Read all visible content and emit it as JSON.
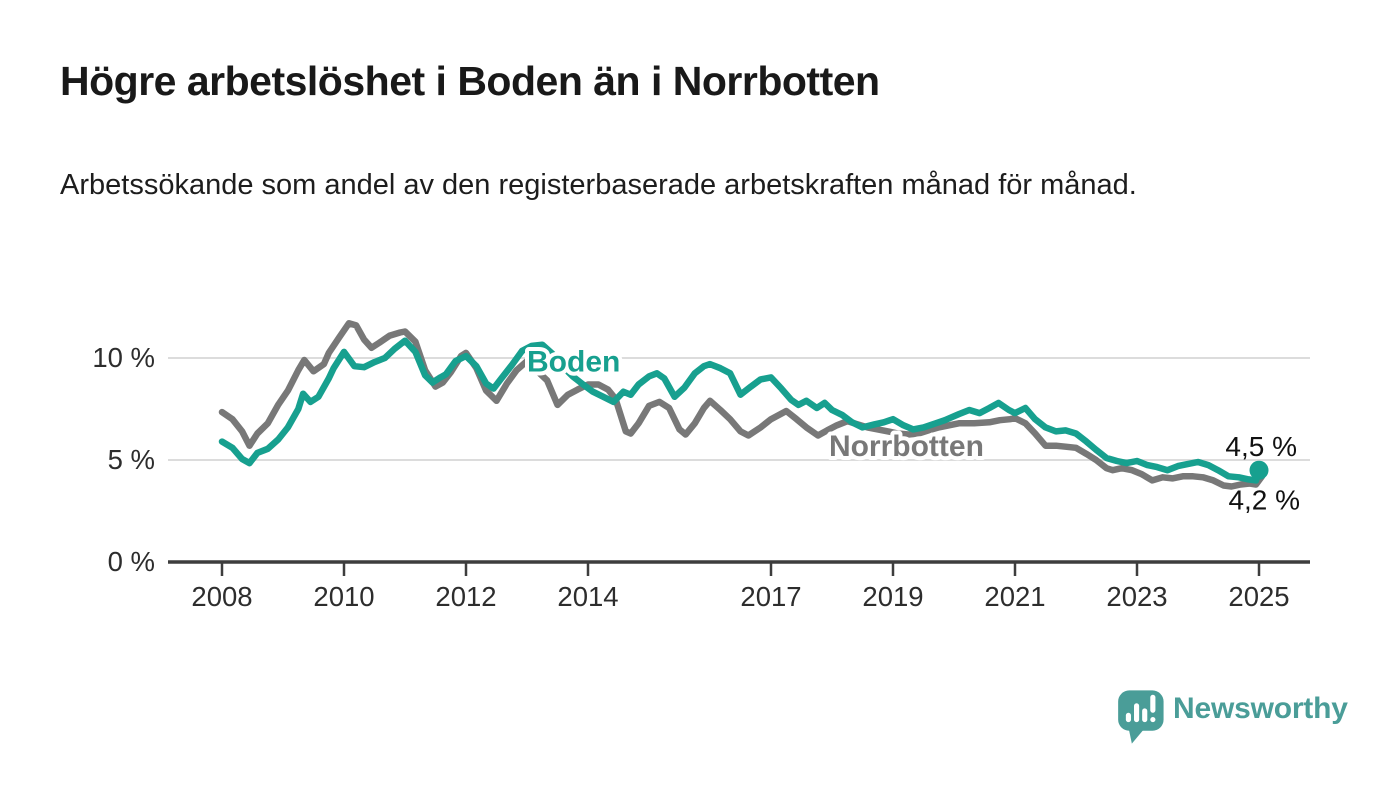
{
  "header": {
    "title": "Högre arbetslöshet i Boden än i Norrbotten",
    "subtitle": "Arbetssökande som andel av den registerbaserade arbetskraften månad för månad."
  },
  "chart_data": {
    "type": "line",
    "y_unit": "%",
    "grid": "horizontal",
    "legend_position": "inline-labels",
    "x_ticks": [
      2008,
      2010,
      2012,
      2014,
      2017,
      2019,
      2021,
      2023,
      2025
    ],
    "y_ticks": [
      {
        "value": 0,
        "label": "0 %"
      },
      {
        "value": 5,
        "label": "5 %"
      },
      {
        "value": 10,
        "label": "10 %"
      }
    ],
    "xlim": [
      2008,
      2025.4
    ],
    "ylim": [
      0,
      12.5
    ],
    "axis_color": "#3d3d3d",
    "grid_color": "#dcdcdc",
    "tick_label_color": "#2d2d2d",
    "annotation_color": "#111111",
    "series": [
      {
        "name": "Norrbotten",
        "color": "#787878",
        "end_label": "4,2 %",
        "end_label_side": "below",
        "end_dot": false,
        "label_anchor": {
          "t": 2017.95,
          "v": 5.2
        },
        "points": [
          [
            2008.0,
            7.35
          ],
          [
            2008.17,
            7.0
          ],
          [
            2008.33,
            6.4
          ],
          [
            2008.45,
            5.7
          ],
          [
            2008.58,
            6.3
          ],
          [
            2008.75,
            6.8
          ],
          [
            2008.92,
            7.7
          ],
          [
            2009.08,
            8.4
          ],
          [
            2009.25,
            9.4
          ],
          [
            2009.35,
            9.9
          ],
          [
            2009.5,
            9.35
          ],
          [
            2009.67,
            9.7
          ],
          [
            2009.75,
            10.25
          ],
          [
            2009.92,
            11.0
          ],
          [
            2010.08,
            11.7
          ],
          [
            2010.2,
            11.6
          ],
          [
            2010.33,
            10.9
          ],
          [
            2010.45,
            10.5
          ],
          [
            2010.58,
            10.75
          ],
          [
            2010.75,
            11.1
          ],
          [
            2010.92,
            11.25
          ],
          [
            2011.0,
            11.3
          ],
          [
            2011.17,
            10.8
          ],
          [
            2011.33,
            9.4
          ],
          [
            2011.5,
            8.6
          ],
          [
            2011.62,
            8.8
          ],
          [
            2011.75,
            9.3
          ],
          [
            2011.92,
            10.1
          ],
          [
            2012.0,
            10.25
          ],
          [
            2012.17,
            9.5
          ],
          [
            2012.33,
            8.4
          ],
          [
            2012.5,
            7.9
          ],
          [
            2012.67,
            8.75
          ],
          [
            2012.83,
            9.4
          ],
          [
            2013.0,
            9.85
          ],
          [
            2013.17,
            9.35
          ],
          [
            2013.33,
            8.9
          ],
          [
            2013.5,
            7.7
          ],
          [
            2013.67,
            8.2
          ],
          [
            2013.83,
            8.45
          ],
          [
            2014.0,
            8.7
          ],
          [
            2014.17,
            8.7
          ],
          [
            2014.33,
            8.45
          ],
          [
            2014.45,
            8.0
          ],
          [
            2014.62,
            6.4
          ],
          [
            2014.7,
            6.3
          ],
          [
            2014.83,
            6.8
          ],
          [
            2015.0,
            7.65
          ],
          [
            2015.17,
            7.85
          ],
          [
            2015.33,
            7.55
          ],
          [
            2015.5,
            6.5
          ],
          [
            2015.6,
            6.25
          ],
          [
            2015.75,
            6.8
          ],
          [
            2015.9,
            7.55
          ],
          [
            2016.0,
            7.9
          ],
          [
            2016.17,
            7.45
          ],
          [
            2016.33,
            7.0
          ],
          [
            2016.5,
            6.4
          ],
          [
            2016.63,
            6.2
          ],
          [
            2016.83,
            6.6
          ],
          [
            2017.0,
            7.0
          ],
          [
            2017.25,
            7.4
          ],
          [
            2017.42,
            7.0
          ],
          [
            2017.58,
            6.6
          ],
          [
            2017.77,
            6.2
          ],
          [
            2017.92,
            6.45
          ],
          [
            2018.08,
            6.7
          ],
          [
            2018.25,
            6.9
          ],
          [
            2018.42,
            6.75
          ],
          [
            2018.58,
            6.6
          ],
          [
            2018.75,
            6.5
          ],
          [
            2018.92,
            6.4
          ],
          [
            2019.08,
            6.3
          ],
          [
            2019.25,
            6.25
          ],
          [
            2019.42,
            6.3
          ],
          [
            2019.58,
            6.45
          ],
          [
            2019.75,
            6.6
          ],
          [
            2019.92,
            6.7
          ],
          [
            2020.08,
            6.8
          ],
          [
            2020.33,
            6.8
          ],
          [
            2020.58,
            6.85
          ],
          [
            2020.75,
            6.95
          ],
          [
            2020.92,
            7.0
          ],
          [
            2021.0,
            7.05
          ],
          [
            2021.17,
            6.8
          ],
          [
            2021.33,
            6.3
          ],
          [
            2021.5,
            5.7
          ],
          [
            2021.67,
            5.7
          ],
          [
            2021.83,
            5.65
          ],
          [
            2022.0,
            5.6
          ],
          [
            2022.17,
            5.3
          ],
          [
            2022.33,
            5.0
          ],
          [
            2022.5,
            4.6
          ],
          [
            2022.6,
            4.5
          ],
          [
            2022.75,
            4.6
          ],
          [
            2022.92,
            4.5
          ],
          [
            2023.08,
            4.3
          ],
          [
            2023.25,
            4.0
          ],
          [
            2023.42,
            4.15
          ],
          [
            2023.58,
            4.1
          ],
          [
            2023.75,
            4.2
          ],
          [
            2023.92,
            4.2
          ],
          [
            2024.08,
            4.15
          ],
          [
            2024.25,
            4.0
          ],
          [
            2024.42,
            3.75
          ],
          [
            2024.55,
            3.7
          ],
          [
            2024.7,
            3.8
          ],
          [
            2024.85,
            3.85
          ],
          [
            2024.95,
            3.8
          ],
          [
            2025.05,
            4.2
          ]
        ]
      },
      {
        "name": "Boden",
        "color": "#17A08F",
        "end_label": "4,5 %",
        "end_label_side": "above",
        "end_dot": true,
        "label_anchor": {
          "t": 2013.0,
          "v": 9.35
        },
        "points": [
          [
            2008.0,
            5.9
          ],
          [
            2008.17,
            5.6
          ],
          [
            2008.33,
            5.05
          ],
          [
            2008.45,
            4.85
          ],
          [
            2008.58,
            5.35
          ],
          [
            2008.75,
            5.55
          ],
          [
            2008.92,
            6.0
          ],
          [
            2009.08,
            6.6
          ],
          [
            2009.25,
            7.5
          ],
          [
            2009.33,
            8.25
          ],
          [
            2009.45,
            7.85
          ],
          [
            2009.58,
            8.1
          ],
          [
            2009.75,
            9.0
          ],
          [
            2009.83,
            9.5
          ],
          [
            2010.0,
            10.3
          ],
          [
            2010.17,
            9.6
          ],
          [
            2010.33,
            9.55
          ],
          [
            2010.5,
            9.8
          ],
          [
            2010.67,
            10.0
          ],
          [
            2010.83,
            10.45
          ],
          [
            2011.0,
            10.85
          ],
          [
            2011.17,
            10.3
          ],
          [
            2011.33,
            9.15
          ],
          [
            2011.45,
            8.8
          ],
          [
            2011.58,
            9.05
          ],
          [
            2011.67,
            9.2
          ],
          [
            2011.83,
            9.85
          ],
          [
            2012.0,
            10.1
          ],
          [
            2012.17,
            9.6
          ],
          [
            2012.33,
            8.75
          ],
          [
            2012.45,
            8.5
          ],
          [
            2012.58,
            9.0
          ],
          [
            2012.75,
            9.65
          ],
          [
            2012.92,
            10.35
          ],
          [
            2013.08,
            10.6
          ],
          [
            2013.25,
            10.65
          ],
          [
            2013.42,
            10.2
          ],
          [
            2013.58,
            9.6
          ],
          [
            2013.75,
            9.1
          ],
          [
            2013.92,
            8.7
          ],
          [
            2014.08,
            8.35
          ],
          [
            2014.25,
            8.1
          ],
          [
            2014.42,
            7.85
          ],
          [
            2014.58,
            8.35
          ],
          [
            2014.7,
            8.2
          ],
          [
            2014.83,
            8.7
          ],
          [
            2015.0,
            9.1
          ],
          [
            2015.13,
            9.25
          ],
          [
            2015.25,
            9.0
          ],
          [
            2015.42,
            8.1
          ],
          [
            2015.58,
            8.55
          ],
          [
            2015.75,
            9.25
          ],
          [
            2015.9,
            9.6
          ],
          [
            2016.0,
            9.7
          ],
          [
            2016.17,
            9.5
          ],
          [
            2016.33,
            9.25
          ],
          [
            2016.5,
            8.2
          ],
          [
            2016.67,
            8.6
          ],
          [
            2016.83,
            8.95
          ],
          [
            2017.0,
            9.05
          ],
          [
            2017.17,
            8.5
          ],
          [
            2017.33,
            7.95
          ],
          [
            2017.45,
            7.7
          ],
          [
            2017.58,
            7.9
          ],
          [
            2017.75,
            7.55
          ],
          [
            2017.88,
            7.8
          ],
          [
            2018.0,
            7.45
          ],
          [
            2018.17,
            7.2
          ],
          [
            2018.33,
            6.85
          ],
          [
            2018.5,
            6.6
          ],
          [
            2018.7,
            6.75
          ],
          [
            2018.85,
            6.85
          ],
          [
            2019.0,
            7.0
          ],
          [
            2019.17,
            6.7
          ],
          [
            2019.33,
            6.5
          ],
          [
            2019.5,
            6.6
          ],
          [
            2019.7,
            6.8
          ],
          [
            2019.85,
            6.95
          ],
          [
            2020.08,
            7.25
          ],
          [
            2020.25,
            7.45
          ],
          [
            2020.42,
            7.3
          ],
          [
            2020.58,
            7.55
          ],
          [
            2020.73,
            7.8
          ],
          [
            2020.9,
            7.45
          ],
          [
            2021.0,
            7.3
          ],
          [
            2021.17,
            7.55
          ],
          [
            2021.33,
            7.0
          ],
          [
            2021.5,
            6.6
          ],
          [
            2021.67,
            6.4
          ],
          [
            2021.83,
            6.45
          ],
          [
            2022.0,
            6.3
          ],
          [
            2022.17,
            5.9
          ],
          [
            2022.33,
            5.5
          ],
          [
            2022.5,
            5.1
          ],
          [
            2022.67,
            4.95
          ],
          [
            2022.83,
            4.85
          ],
          [
            2023.0,
            4.95
          ],
          [
            2023.17,
            4.75
          ],
          [
            2023.33,
            4.65
          ],
          [
            2023.5,
            4.5
          ],
          [
            2023.67,
            4.7
          ],
          [
            2023.83,
            4.8
          ],
          [
            2024.0,
            4.9
          ],
          [
            2024.17,
            4.75
          ],
          [
            2024.33,
            4.5
          ],
          [
            2024.5,
            4.2
          ],
          [
            2024.67,
            4.15
          ],
          [
            2024.83,
            4.05
          ],
          [
            2024.95,
            4.0
          ],
          [
            2025.0,
            4.5
          ]
        ]
      }
    ]
  },
  "branding": {
    "name": "Newsworthy",
    "color": "#4A9D98"
  }
}
